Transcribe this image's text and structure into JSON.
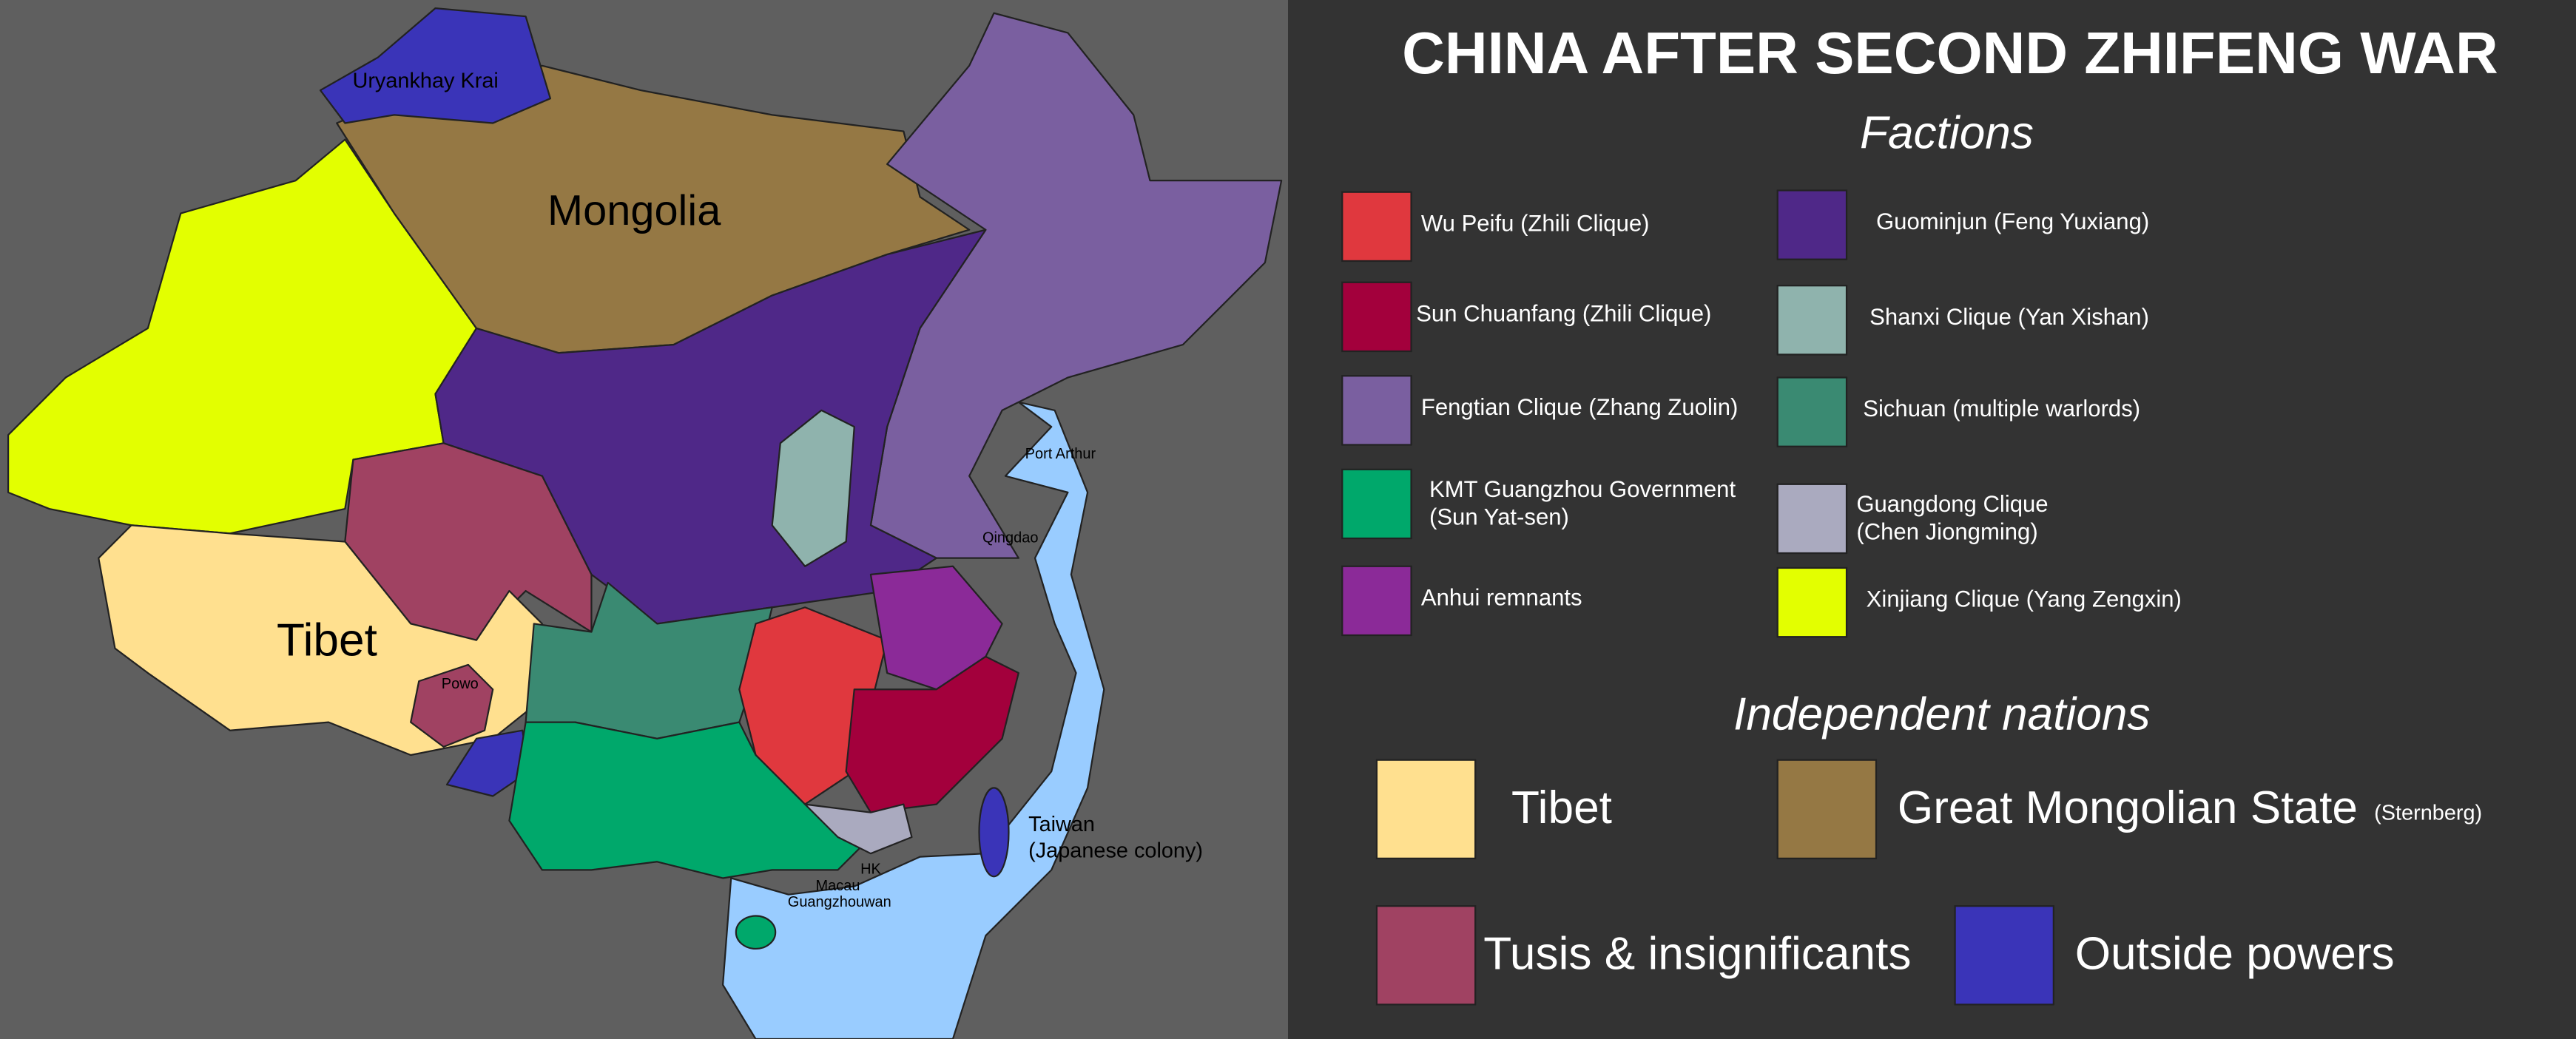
{
  "title": "CHINA AFTER SECOND ZHIFENG WAR",
  "factions": {
    "heading": "Factions",
    "items": [
      {
        "label": "Wu Peifu (Zhili Clique)",
        "color": "#e0383e"
      },
      {
        "label": "Sun Chuanfang (Zhili Clique)",
        "color": "#a3003c"
      },
      {
        "label": "Fengtian Clique (Zhang Zuolin)",
        "color": "#7a5fa0"
      },
      {
        "label": [
          "KMT Guangzhou Government",
          "(Sun Yat-sen)"
        ],
        "color": "#00a86b"
      },
      {
        "label": "Anhui remnants",
        "color": "#8b2a98"
      },
      {
        "label": "Guominjun (Feng Yuxiang)",
        "color": "#4f2888"
      },
      {
        "label": "Shanxi Clique (Yan Xishan)",
        "color": "#8fb3ad"
      },
      {
        "label": "Sichuan (multiple warlords)",
        "color": "#3a8a72"
      },
      {
        "label": [
          "Guangdong Clique",
          "(Chen Jiongming)"
        ],
        "color": "#aaaabf"
      },
      {
        "label": "Xinjiang Clique (Yang Zengxin)",
        "color": "#e3ff00"
      }
    ]
  },
  "independent": {
    "heading": "Independent nations",
    "items": [
      {
        "label": "Tibet",
        "color": "#ffe08f"
      },
      {
        "label": "Great Mongolian State",
        "note": "(Sternberg)",
        "color": "#957844"
      },
      {
        "label": "Tusis & insignificants",
        "color": "#a04262"
      },
      {
        "label": "Outside powers",
        "color": "#3a34b8"
      }
    ]
  },
  "map_labels": [
    "Uryankhay Krai",
    "Mongolia",
    "Tibet",
    "Powo",
    "Port Arthur",
    "Qingdao",
    "Taiwan",
    "(Japanese colony)",
    "HK",
    "Macau",
    "Guangzhouwan"
  ]
}
